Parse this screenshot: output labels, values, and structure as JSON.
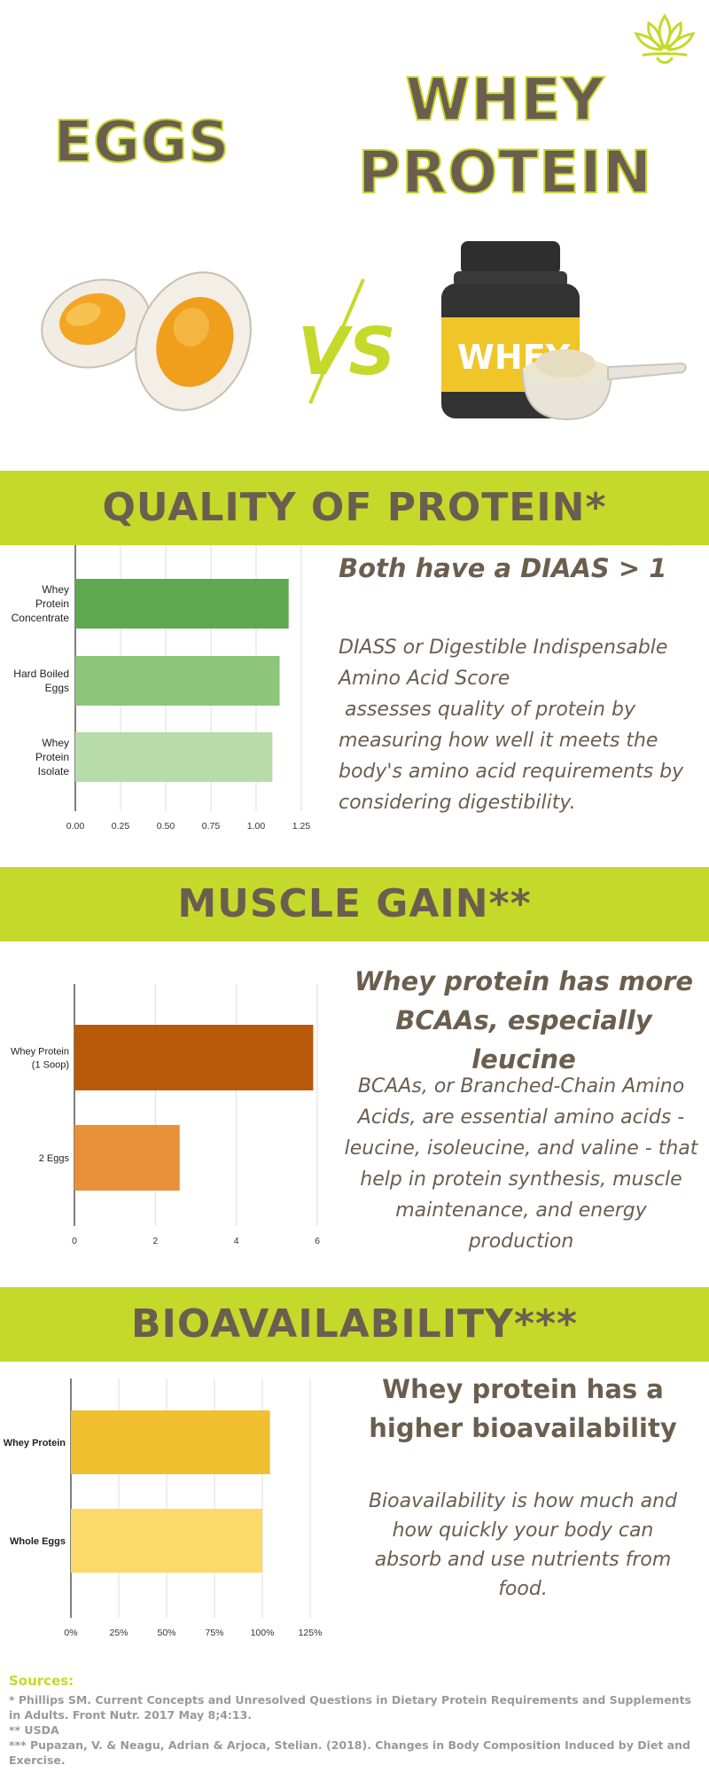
{
  "header": {
    "left_title": "EGGS",
    "right_title_line1": "WHEY",
    "right_title_line2": "PROTEIN",
    "vs_label": "VS",
    "jar_label": "WHEY"
  },
  "sections": [
    {
      "band_title": "QUALITY OF PROTEIN*",
      "headline": "Both have a DIAAS > 1",
      "paragraph_line1": "DIASS or Digestible Indispensable Amino Acid Score",
      "paragraph_line2": " assesses quality of protein by measuring how well it meets the body's amino acid requirements by considering digestibility."
    },
    {
      "band_title": "MUSCLE GAIN**",
      "headline": "Whey protein has more BCAAs, especially leucine",
      "paragraph": "BCAAs, or Branched-Chain Amino Acids, are essential amino acids - leucine, isoleucine, and valine - that help in protein synthesis, muscle maintenance, and energy production"
    },
    {
      "band_title": "BIOAVAILABILITY***",
      "headline": "Whey protein has a higher bioavailability",
      "paragraph": "Bioavailability is how much and how quickly your body can absorb and use nutrients from food."
    }
  ],
  "chart_data": [
    {
      "type": "bar",
      "orientation": "horizontal",
      "categories": [
        [
          "Whey",
          "Protein",
          "Concentrate"
        ],
        [
          "Hard Boiled",
          "Eggs"
        ],
        [
          "Whey",
          "Protein",
          "Isolate"
        ]
      ],
      "values": [
        1.18,
        1.13,
        1.09
      ],
      "colors": [
        "#5ea84f",
        "#8dc57a",
        "#b7dcaa"
      ],
      "xlim": [
        0,
        1.25
      ],
      "ticks": [
        "0.00",
        "0.25",
        "0.50",
        "0.75",
        "1.00",
        "1.25"
      ],
      "tick_values": [
        0,
        0.25,
        0.5,
        0.75,
        1.0,
        1.25
      ],
      "grid": true
    },
    {
      "type": "bar",
      "orientation": "horizontal",
      "categories": [
        [
          "Whey Protein",
          "(1 Soop)"
        ],
        [
          "2 Eggs"
        ]
      ],
      "values": [
        5.9,
        2.6
      ],
      "colors": [
        "#b8590a",
        "#e8903a"
      ],
      "xlim": [
        0,
        6
      ],
      "ticks": [
        "0",
        "2",
        "4",
        "6"
      ],
      "tick_values": [
        0,
        2,
        4,
        6
      ],
      "grid": true
    },
    {
      "type": "bar",
      "orientation": "horizontal",
      "categories": [
        [
          "Whey Protein"
        ],
        [
          "Whole Eggs"
        ]
      ],
      "values": [
        104,
        100
      ],
      "colors": [
        "#f0c030",
        "#fbd96a"
      ],
      "xlim": [
        0,
        125
      ],
      "ticks": [
        "0%",
        "25%",
        "50%",
        "75%",
        "100%",
        "125%"
      ],
      "tick_values": [
        0,
        25,
        50,
        75,
        100,
        125
      ],
      "grid": true,
      "bold_labels": true
    }
  ],
  "sources": {
    "heading": "Sources:",
    "lines": [
      "*  Phillips SM. Current Concepts and Unresolved Questions in Dietary Protein Requirements and Supplements in Adults. Front Nutr. 2017 May 8;4:13.",
      "**  USDA",
      "*** Pupazan, V. & Neagu, Adrian & Arjoca, Stelian. (2018). Changes in Body Composition Induced by Diet and Exercise."
    ]
  }
}
